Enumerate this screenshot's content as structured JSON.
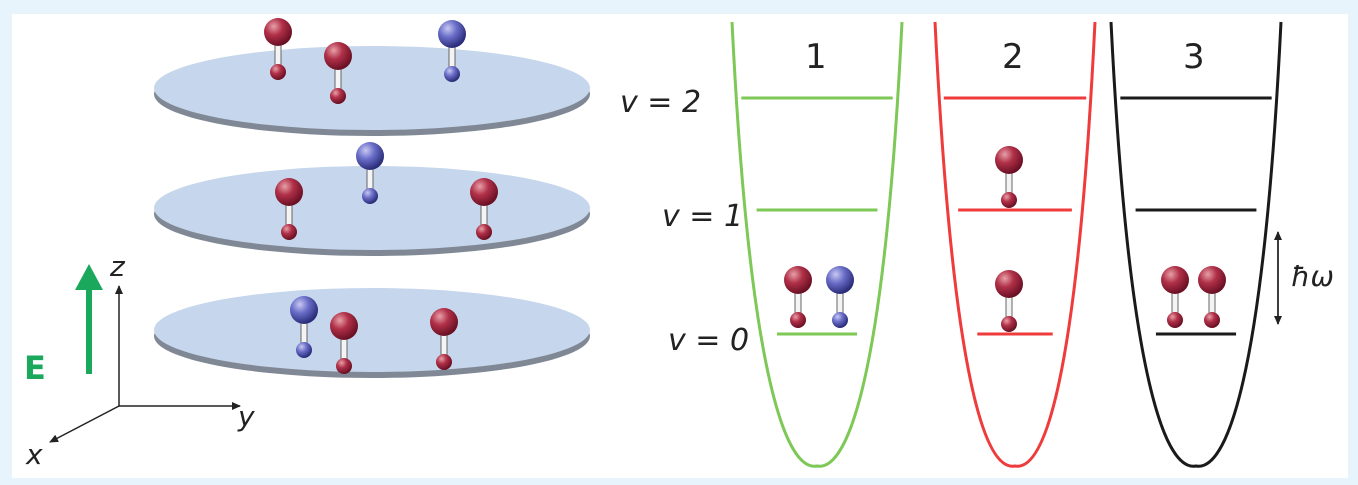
{
  "axes": {
    "z_label": "z",
    "y_label": "y",
    "x_label": "x",
    "field_label": "E"
  },
  "wells": [
    {
      "label": "1",
      "color": "#7dc856"
    },
    {
      "label": "2",
      "color": "#ef3b3b"
    },
    {
      "label": "3",
      "color": "#1a1a1a"
    }
  ],
  "levels": {
    "v2": "v = 2",
    "v1": "v = 1",
    "v0": "v = 0"
  },
  "spacing_label": "ħω",
  "colors": {
    "disk": "#c6d6ec",
    "disk_edge": "#8f9aa8",
    "molecule_red": "#8c1f34",
    "molecule_blue": "#4a4ea0",
    "field_arrow": "#19a85c",
    "background": "#e8f4fb"
  }
}
